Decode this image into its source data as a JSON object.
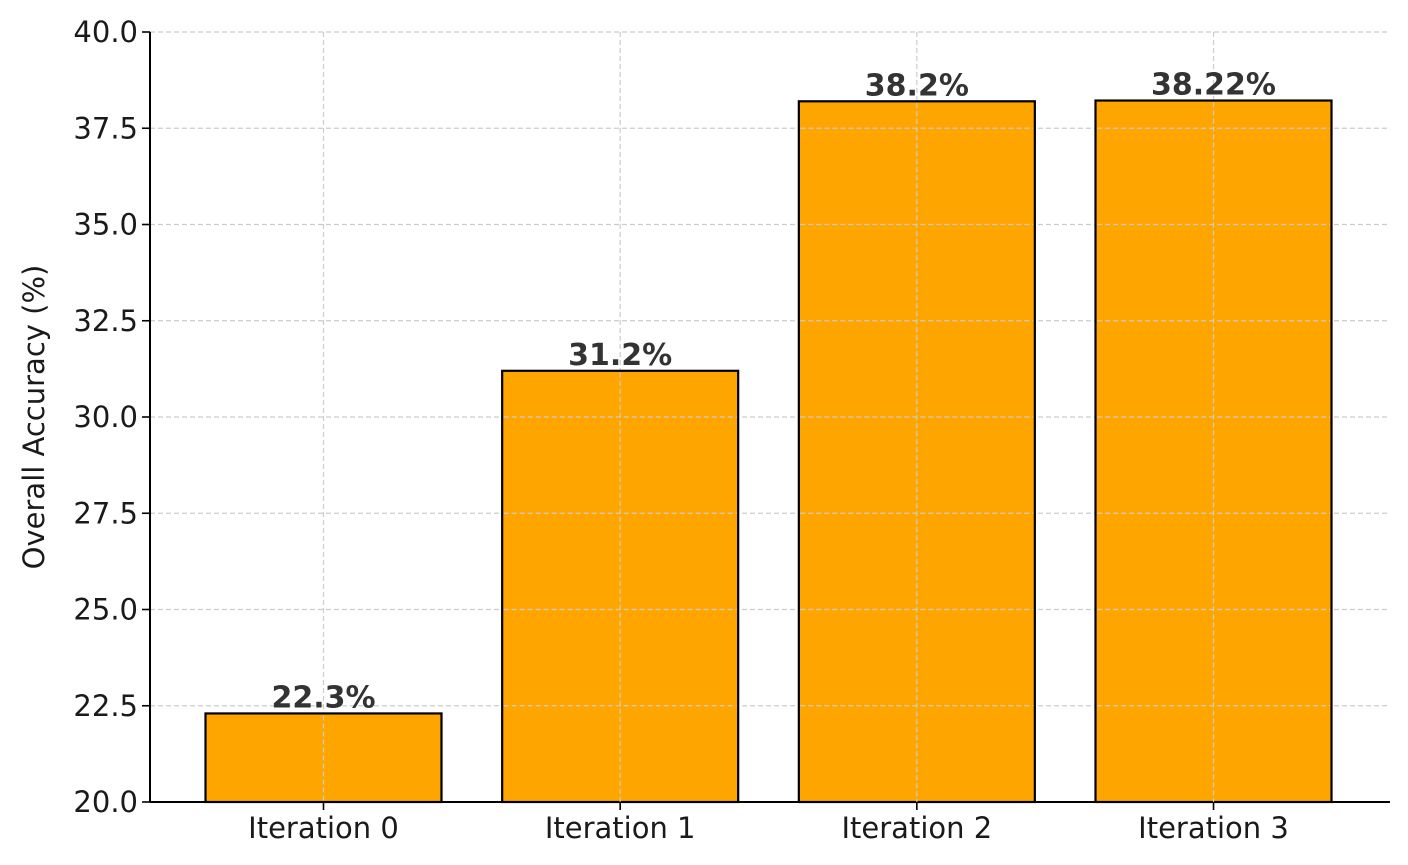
{
  "chart_data": {
    "type": "bar",
    "categories": [
      "Iteration 0",
      "Iteration 1",
      "Iteration 2",
      "Iteration 3"
    ],
    "values": [
      22.3,
      31.2,
      38.2,
      38.22
    ],
    "data_labels": [
      "22.3%",
      "31.2%",
      "38.2%",
      "38.22%"
    ],
    "title": "",
    "xlabel": "",
    "ylabel": "Overall Accuracy (%)",
    "ylim": [
      20.0,
      40.0
    ],
    "yticks": [
      "20.0",
      "22.5",
      "25.0",
      "27.5",
      "30.0",
      "32.5",
      "35.0",
      "37.5",
      "40.0"
    ],
    "grid": true,
    "legend": "none",
    "colors": {
      "bar_fill": "#FFA500",
      "bar_edge": "#000000"
    }
  }
}
